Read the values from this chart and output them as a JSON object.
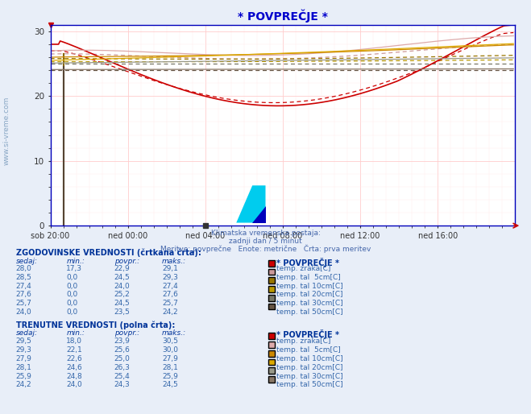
{
  "title": "* POVPREČJE *",
  "title_color": "#0000cc",
  "bg_color": "#e8eef8",
  "plot_bg_color": "#ffffff",
  "grid_major_color": "#ffcccc",
  "grid_minor_color": "#ffe8e8",
  "axis_color": "#0000bb",
  "xlim": [
    0,
    288
  ],
  "ylim": [
    0,
    31
  ],
  "yticks": [
    0,
    10,
    20,
    30
  ],
  "xtick_labels": [
    "sob 20:00",
    "ned 00:00",
    "ned 04:00",
    "ned 08:00",
    "ned 12:00",
    "ned 16:00"
  ],
  "xtick_positions": [
    0,
    48,
    96,
    144,
    192,
    240
  ],
  "watermark": "www.si-vreme.com",
  "subtitle1": "Klimatska vremenska postaja:",
  "subtitle2": "zadnji dan / 5 minut",
  "subtitle3": "Meritve: povprečne   Enote: metrične   Črta: prva meritev",
  "subtitle_color": "#4466aa",
  "text_color": "#3366aa",
  "bold_color": "#003399",
  "legend_colors_hist": [
    "#cc0000",
    "#cc9999",
    "#997700",
    "#bb9900",
    "#777766",
    "#665544"
  ],
  "legend_colors_curr": [
    "#cc0000",
    "#ddaaaa",
    "#cc8800",
    "#ddaa00",
    "#999988",
    "#887766"
  ],
  "table_hist_rows": [
    [
      28.0,
      17.3,
      22.9,
      29.1
    ],
    [
      28.5,
      0.0,
      24.5,
      29.3
    ],
    [
      27.4,
      0.0,
      24.0,
      27.4
    ],
    [
      27.6,
      0.0,
      25.2,
      27.6
    ],
    [
      25.7,
      0.0,
      24.5,
      25.7
    ],
    [
      24.0,
      0.0,
      23.5,
      24.2
    ]
  ],
  "table_curr_rows": [
    [
      29.5,
      18.0,
      23.9,
      30.5
    ],
    [
      29.3,
      22.1,
      25.6,
      30.0
    ],
    [
      27.9,
      22.6,
      25.0,
      27.9
    ],
    [
      28.1,
      24.6,
      26.3,
      28.1
    ],
    [
      25.9,
      24.8,
      25.4,
      25.9
    ],
    [
      24.2,
      24.0,
      24.3,
      24.5
    ]
  ],
  "row_labels": [
    "temp. zraka[C]",
    "temp. tal  5cm[C]",
    "temp. tal 10cm[C]",
    "temp. tal 20cm[C]",
    "temp. tal 30cm[C]",
    "temp. tal 50cm[C]"
  ]
}
